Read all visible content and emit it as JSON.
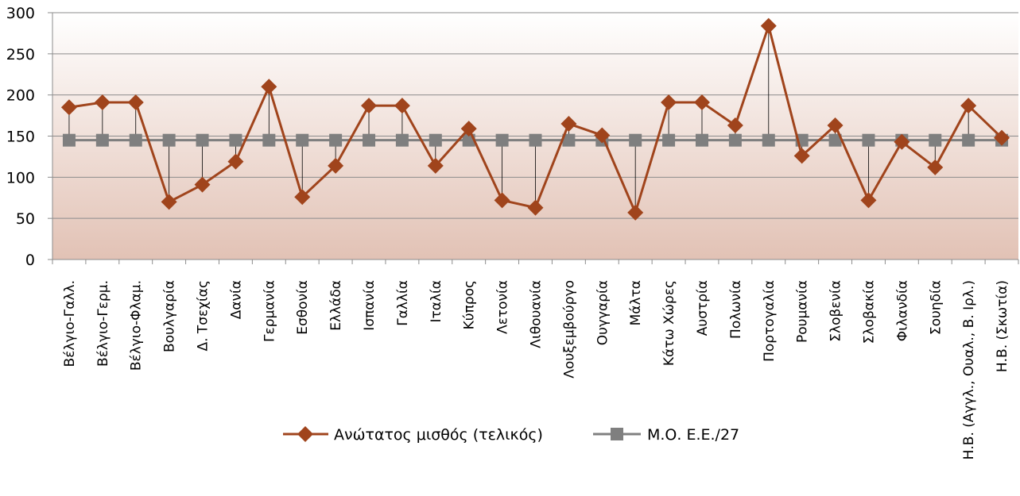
{
  "chart_data": {
    "type": "line",
    "categories": [
      "Βέλγιο-Γαλλ.",
      "Βέλγιο-Γερμ.",
      "Βέλγιο-Φλαμ.",
      "Βουλγαρία",
      "Δ. Τσεχίας",
      "Δανία",
      "Γερμανία",
      "Εσθονία",
      "Ελλάδα",
      "Ισπανία",
      "Γαλλία",
      "Ιταλία",
      "Κύπρος",
      "Λετονία",
      "Λιθουανία",
      "Λουξεμβούργο",
      "Ουγγαρία",
      "Μάλτα",
      "Κάτω Χώρες",
      "Αυστρία",
      "Πολωνία",
      "Πορτογαλία",
      "Ρουμανία",
      "Σλοβενία",
      "Σλοβακία",
      "Φιλανδία",
      "Σουηδία",
      "Η.Β. (Αγγλ., Ουαλ., Β. Ιρλ.)",
      "Η.Β. (Σκωτία)"
    ],
    "series": [
      {
        "name": "Ανώτατος μισθός (τελικός)",
        "color": "#A0441C",
        "marker": "diamond",
        "values": [
          185,
          191,
          191,
          70,
          91,
          119,
          210,
          76,
          114,
          187,
          187,
          114,
          159,
          72,
          63,
          165,
          151,
          57,
          191,
          191,
          163,
          284,
          126,
          163,
          72,
          143,
          112,
          187,
          148
        ]
      },
      {
        "name": "Μ.Ο. Ε.Ε./27",
        "color": "#7F7F7F",
        "marker": "square",
        "values": [
          145,
          145,
          145,
          145,
          145,
          145,
          145,
          145,
          145,
          145,
          145,
          145,
          145,
          145,
          145,
          145,
          145,
          145,
          145,
          145,
          145,
          145,
          145,
          145,
          145,
          145,
          145,
          145,
          145
        ]
      }
    ],
    "y_ticks": [
      "0",
      "50",
      "100",
      "150",
      "200",
      "250",
      "300"
    ],
    "ylim": [
      0,
      300
    ],
    "grid": true,
    "drop_lines": true,
    "legend_position": "bottom",
    "background_gradient": [
      "#FFFFFF",
      "#E2C2B5"
    ]
  }
}
